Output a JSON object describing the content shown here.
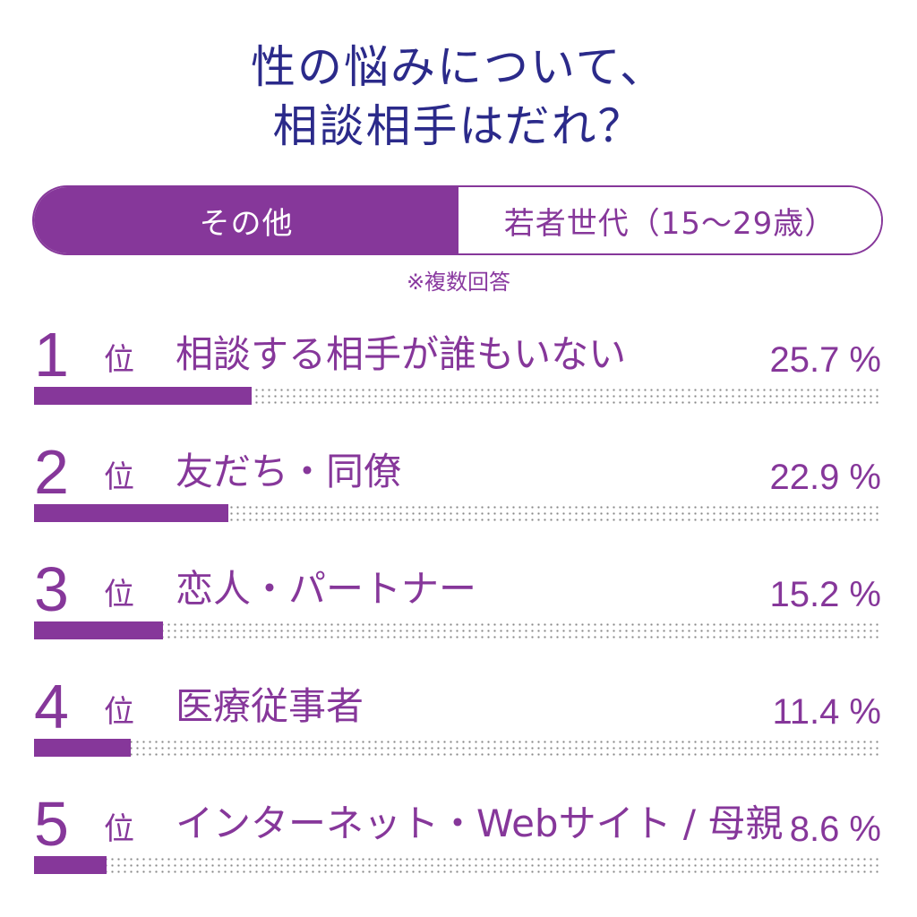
{
  "title_line1": "性の悩みについて、",
  "title_line2": "相談相手はだれ？",
  "tabs": {
    "active": "その他",
    "inactive": "若者世代（15～29歳）"
  },
  "note": "※複数回答",
  "accent_color": "#86379a",
  "rank_suffix": "位",
  "percent_sign": "%",
  "chart_data": {
    "type": "bar",
    "orientation": "horizontal",
    "xlim": [
      0,
      100
    ],
    "categories": [
      "相談する相手が誰もいない",
      "友だち・同僚",
      "恋人・パートナー",
      "医療従事者",
      "インターネット・Webサイト / 母親"
    ],
    "ranks": [
      "1",
      "2",
      "3",
      "4",
      "5"
    ],
    "values": [
      25.7,
      22.9,
      15.2,
      11.4,
      8.6
    ],
    "value_labels": [
      "25.7",
      "22.9",
      "15.2",
      "11.4",
      "8.6"
    ]
  }
}
